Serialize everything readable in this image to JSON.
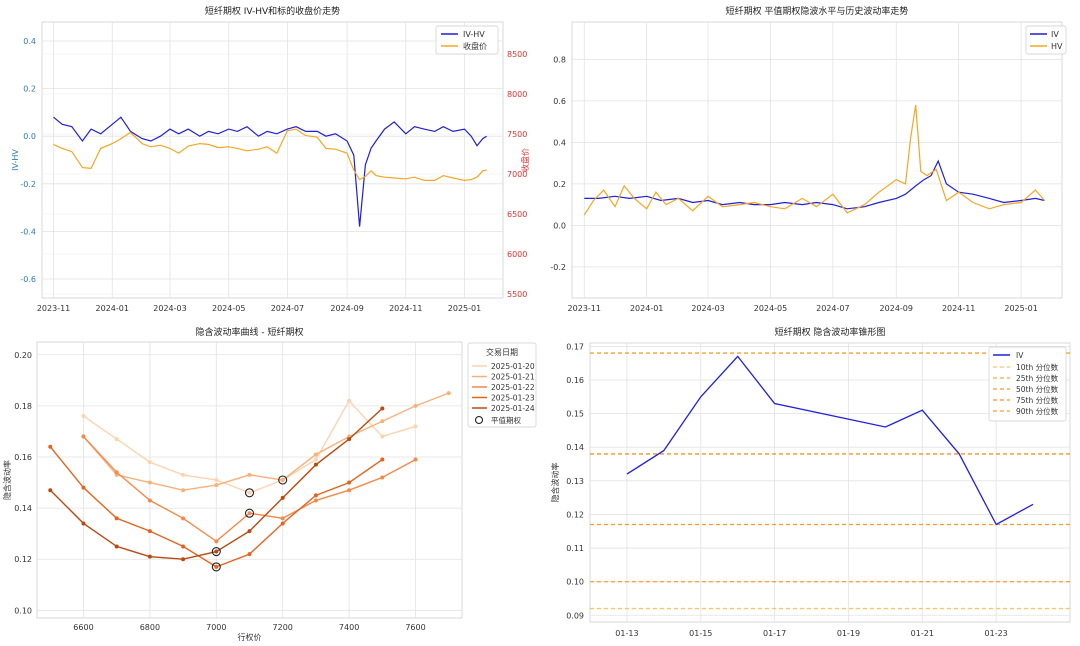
{
  "chart_data": [
    {
      "type": "line",
      "title": "短纤期权 IV-HV和标的收盘价走势",
      "ylabel": "IV-HV",
      "ylabel_right": "收盘价",
      "ylim": [
        -0.68,
        0.48
      ],
      "ylim_right": [
        5450,
        8900
      ],
      "yticks": [
        -0.6,
        -0.4,
        -0.2,
        0.0,
        0.2,
        0.4
      ],
      "yticks_right": [
        5500,
        6000,
        6500,
        7000,
        7500,
        8000,
        8500
      ],
      "xlim": [
        "2023-10-20",
        "2025-02-10"
      ],
      "xticks": [
        "2023-11",
        "2024-01",
        "2024-03",
        "2024-05",
        "2024-07",
        "2024-09",
        "2024-11",
        "2025-01"
      ],
      "grid": true,
      "legend_position": "top-right",
      "colors": {
        "iv_hv": "#1f1fd6",
        "close": "#f5a623",
        "left_axis": "#2b7bb9",
        "right_axis": "#e03030"
      },
      "series": [
        {
          "name": "IV-HV",
          "axis": "left",
          "x": [
            "2023-11-01",
            "2023-11-10",
            "2023-11-20",
            "2023-12-01",
            "2023-12-10",
            "2023-12-20",
            "2024-01-01",
            "2024-01-10",
            "2024-01-20",
            "2024-02-01",
            "2024-02-10",
            "2024-02-20",
            "2024-03-01",
            "2024-03-10",
            "2024-03-20",
            "2024-04-01",
            "2024-04-10",
            "2024-04-20",
            "2024-05-01",
            "2024-05-10",
            "2024-05-20",
            "2024-06-01",
            "2024-06-10",
            "2024-06-20",
            "2024-07-01",
            "2024-07-10",
            "2024-07-20",
            "2024-08-01",
            "2024-08-10",
            "2024-08-20",
            "2024-09-01",
            "2024-09-08",
            "2024-09-14",
            "2024-09-20",
            "2024-09-26",
            "2024-10-01",
            "2024-10-10",
            "2024-10-20",
            "2024-11-01",
            "2024-11-10",
            "2024-11-20",
            "2024-12-01",
            "2024-12-10",
            "2024-12-20",
            "2025-01-01",
            "2025-01-08",
            "2025-01-14",
            "2025-01-20",
            "2025-01-24"
          ],
          "y": [
            0.08,
            0.05,
            0.04,
            -0.02,
            0.03,
            0.01,
            0.05,
            0.08,
            0.02,
            -0.01,
            -0.02,
            0.0,
            0.03,
            0.01,
            0.03,
            0.0,
            0.02,
            0.01,
            0.03,
            0.02,
            0.04,
            0.0,
            0.02,
            0.01,
            0.03,
            0.04,
            0.02,
            0.02,
            0.0,
            0.01,
            -0.02,
            -0.08,
            -0.38,
            -0.12,
            -0.05,
            -0.02,
            0.03,
            0.06,
            0.01,
            0.04,
            0.03,
            0.02,
            0.04,
            0.02,
            0.03,
            0.0,
            -0.04,
            -0.01,
            0.0
          ]
        },
        {
          "name": "收盘价",
          "axis": "right",
          "x": [
            "2023-11-01",
            "2023-11-10",
            "2023-11-20",
            "2023-12-01",
            "2023-12-10",
            "2023-12-20",
            "2024-01-01",
            "2024-01-10",
            "2024-01-20",
            "2024-02-01",
            "2024-02-10",
            "2024-02-20",
            "2024-03-01",
            "2024-03-10",
            "2024-03-20",
            "2024-04-01",
            "2024-04-10",
            "2024-04-20",
            "2024-05-01",
            "2024-05-10",
            "2024-05-20",
            "2024-06-01",
            "2024-06-10",
            "2024-06-20",
            "2024-07-01",
            "2024-07-10",
            "2024-07-20",
            "2024-08-01",
            "2024-08-10",
            "2024-08-20",
            "2024-09-01",
            "2024-09-08",
            "2024-09-14",
            "2024-09-20",
            "2024-09-26",
            "2024-10-01",
            "2024-10-10",
            "2024-10-20",
            "2024-11-01",
            "2024-11-10",
            "2024-11-20",
            "2024-12-01",
            "2024-12-10",
            "2024-12-20",
            "2025-01-01",
            "2025-01-08",
            "2025-01-14",
            "2025-01-20",
            "2025-01-24"
          ],
          "y": [
            7370,
            7320,
            7280,
            7080,
            7070,
            7320,
            7380,
            7440,
            7520,
            7380,
            7340,
            7360,
            7320,
            7260,
            7350,
            7380,
            7370,
            7330,
            7340,
            7320,
            7290,
            7310,
            7340,
            7260,
            7540,
            7560,
            7480,
            7460,
            7320,
            7310,
            7260,
            7050,
            6930,
            6970,
            7040,
            6980,
            6960,
            6950,
            6940,
            6960,
            6920,
            6920,
            6980,
            6950,
            6920,
            6930,
            6960,
            7040,
            7050
          ]
        }
      ]
    },
    {
      "type": "line",
      "title": "短纤期权 平值期权隐波水平与历史波动率走势",
      "ylim": [
        -0.35,
        0.98
      ],
      "yticks": [
        -0.2,
        0.0,
        0.2,
        0.4,
        0.6,
        0.8
      ],
      "xlim": [
        "2023-10-20",
        "2025-02-10"
      ],
      "xticks": [
        "2023-11",
        "2024-01",
        "2024-03",
        "2024-05",
        "2024-07",
        "2024-09",
        "2024-11",
        "2025-01"
      ],
      "grid": true,
      "legend_position": "top-right",
      "colors": {
        "iv": "#1f1fd6",
        "hv": "#f5a623"
      },
      "series": [
        {
          "name": "IV",
          "x": [
            "2023-11-01",
            "2023-11-15",
            "2023-12-01",
            "2023-12-15",
            "2024-01-01",
            "2024-01-15",
            "2024-02-01",
            "2024-02-15",
            "2024-03-01",
            "2024-03-15",
            "2024-04-01",
            "2024-04-15",
            "2024-05-01",
            "2024-05-15",
            "2024-06-01",
            "2024-06-15",
            "2024-07-01",
            "2024-07-15",
            "2024-08-01",
            "2024-08-15",
            "2024-09-01",
            "2024-09-10",
            "2024-09-20",
            "2024-09-28",
            "2024-10-05",
            "2024-10-12",
            "2024-10-20",
            "2024-11-01",
            "2024-11-15",
            "2024-12-01",
            "2024-12-15",
            "2025-01-01",
            "2025-01-15",
            "2025-01-24"
          ],
          "y": [
            0.13,
            0.13,
            0.14,
            0.13,
            0.14,
            0.12,
            0.13,
            0.11,
            0.12,
            0.1,
            0.11,
            0.1,
            0.1,
            0.11,
            0.1,
            0.11,
            0.1,
            0.08,
            0.09,
            0.11,
            0.13,
            0.15,
            0.19,
            0.22,
            0.24,
            0.31,
            0.2,
            0.16,
            0.15,
            0.13,
            0.11,
            0.12,
            0.13,
            0.12
          ]
        },
        {
          "name": "HV",
          "x": [
            "2023-11-01",
            "2023-11-10",
            "2023-11-20",
            "2023-12-01",
            "2023-12-10",
            "2023-12-20",
            "2024-01-01",
            "2024-01-10",
            "2024-01-20",
            "2024-02-01",
            "2024-02-15",
            "2024-03-01",
            "2024-03-15",
            "2024-04-01",
            "2024-04-15",
            "2024-05-01",
            "2024-05-15",
            "2024-06-01",
            "2024-06-15",
            "2024-07-01",
            "2024-07-15",
            "2024-08-01",
            "2024-08-15",
            "2024-09-01",
            "2024-09-10",
            "2024-09-15",
            "2024-09-20",
            "2024-09-25",
            "2024-10-01",
            "2024-10-10",
            "2024-10-20",
            "2024-11-01",
            "2024-11-15",
            "2024-12-01",
            "2024-12-15",
            "2025-01-01",
            "2025-01-15",
            "2025-01-24"
          ],
          "y": [
            0.05,
            0.12,
            0.17,
            0.09,
            0.19,
            0.13,
            0.08,
            0.16,
            0.1,
            0.13,
            0.07,
            0.14,
            0.09,
            0.1,
            0.11,
            0.09,
            0.08,
            0.13,
            0.09,
            0.15,
            0.06,
            0.1,
            0.16,
            0.22,
            0.2,
            0.42,
            0.58,
            0.26,
            0.24,
            0.27,
            0.12,
            0.16,
            0.11,
            0.08,
            0.1,
            0.11,
            0.17,
            0.12
          ]
        }
      ]
    },
    {
      "type": "line",
      "title": "隐含波动率曲线 - 短纤期权",
      "xlabel": "行权价",
      "ylabel": "隐含波动率",
      "xlim": [
        6460,
        7740
      ],
      "ylim": [
        0.097,
        0.205
      ],
      "xticks": [
        6600,
        6800,
        7000,
        7200,
        7400,
        7600
      ],
      "yticks": [
        0.1,
        0.12,
        0.14,
        0.16,
        0.18,
        0.2
      ],
      "grid": true,
      "legend_title": "交易日期",
      "legend_position": "outside-right",
      "atm_label": "平值期权",
      "series": [
        {
          "name": "2025-01-20",
          "color": "#fdd3ae",
          "x": [
            6600,
            6700,
            6800,
            6900,
            7000,
            7100,
            7200,
            7300,
            7400,
            7500,
            7600
          ],
          "y": [
            0.176,
            0.167,
            0.158,
            0.153,
            0.151,
            0.146,
            0.151,
            0.159,
            0.182,
            0.168,
            0.172
          ]
        },
        {
          "name": "2025-01-21",
          "color": "#fbb07a",
          "x": [
            6600,
            6700,
            6800,
            6900,
            7000,
            7100,
            7200,
            7300,
            7400,
            7500,
            7600,
            7700
          ],
          "y": [
            0.168,
            0.153,
            0.15,
            0.147,
            0.149,
            0.153,
            0.151,
            0.161,
            0.168,
            0.174,
            0.18,
            0.185
          ]
        },
        {
          "name": "2025-01-22",
          "color": "#f4894a",
          "x": [
            6600,
            6700,
            6800,
            6900,
            7000,
            7100,
            7200,
            7300,
            7400,
            7500,
            7600
          ],
          "y": [
            0.168,
            0.154,
            0.143,
            0.136,
            0.127,
            0.138,
            0.136,
            0.143,
            0.147,
            0.152,
            0.159
          ]
        },
        {
          "name": "2025-01-23",
          "color": "#e2651e",
          "x": [
            6500,
            6600,
            6700,
            6800,
            6900,
            7000,
            7100,
            7200,
            7300,
            7400,
            7500
          ],
          "y": [
            0.164,
            0.148,
            0.136,
            0.131,
            0.125,
            0.117,
            0.122,
            0.134,
            0.145,
            0.15,
            0.159
          ]
        },
        {
          "name": "2025-01-24",
          "color": "#b84a12",
          "x": [
            6500,
            6600,
            6700,
            6800,
            6900,
            7000,
            7100,
            7200,
            7300,
            7400,
            7500
          ],
          "y": [
            0.147,
            0.134,
            0.125,
            0.121,
            0.12,
            0.123,
            0.131,
            0.144,
            0.157,
            0.167,
            0.179
          ]
        }
      ],
      "atm_points": [
        {
          "x": 7000,
          "y": 0.117
        },
        {
          "x": 7000,
          "y": 0.123
        },
        {
          "x": 7100,
          "y": 0.138
        },
        {
          "x": 7100,
          "y": 0.146
        },
        {
          "x": 7200,
          "y": 0.151
        }
      ]
    },
    {
      "type": "line",
      "title": "短纤期权 隐含波动率锥形图",
      "ylabel": "隐含波动率",
      "xlim": [
        "2025-01-12",
        "2025-01-25"
      ],
      "ylim": [
        0.088,
        0.171
      ],
      "xticks": [
        "01-13",
        "01-15",
        "01-17",
        "01-19",
        "01-21",
        "01-23"
      ],
      "xtick_dates": [
        "2025-01-13",
        "2025-01-15",
        "2025-01-17",
        "2025-01-19",
        "2025-01-21",
        "2025-01-23"
      ],
      "yticks": [
        0.09,
        0.1,
        0.11,
        0.12,
        0.13,
        0.14,
        0.15,
        0.16,
        0.17
      ],
      "grid": true,
      "legend_position": "top-right",
      "series": [
        {
          "name": "IV",
          "color": "#2020e0",
          "x": [
            "2025-01-13",
            "2025-01-14",
            "2025-01-15",
            "2025-01-16",
            "2025-01-17",
            "2025-01-20",
            "2025-01-21",
            "2025-01-22",
            "2025-01-23",
            "2025-01-24"
          ],
          "y": [
            0.132,
            0.139,
            0.155,
            0.167,
            0.153,
            0.146,
            0.151,
            0.138,
            0.117,
            0.123
          ]
        }
      ],
      "percentiles": [
        {
          "name": "10th 分位数",
          "value": 0.092,
          "color": "#fbc36a"
        },
        {
          "name": "25th 分位数",
          "value": 0.1,
          "color": "#f7a63b"
        },
        {
          "name": "50th 分位数",
          "value": 0.117,
          "color": "#f59b2a"
        },
        {
          "name": "75th 分位数",
          "value": 0.138,
          "color": "#f39420"
        },
        {
          "name": "90th 分位数",
          "value": 0.168,
          "color": "#f5a02e"
        }
      ]
    }
  ]
}
